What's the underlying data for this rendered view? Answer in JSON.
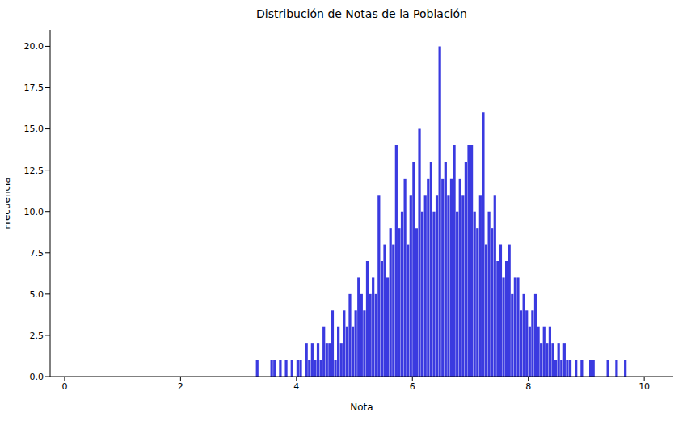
{
  "chart_data": {
    "type": "histogram",
    "title": "Distribución de Notas de la Población",
    "x_label": "Nota",
    "y_label": "Frecuencia",
    "color": "#3a3ae0",
    "grid": false,
    "xlim": [
      -0.25,
      10.5
    ],
    "xticks": [
      0,
      2,
      4,
      6,
      8,
      10
    ],
    "ylim": [
      0,
      21
    ],
    "yticks": [
      {
        "value": 0,
        "label": "0.0"
      },
      {
        "value": 2.5,
        "label": "2.5"
      },
      {
        "value": 5,
        "label": "5.0"
      },
      {
        "value": 7.5,
        "label": "7.5"
      },
      {
        "value": 10,
        "label": "10.0"
      },
      {
        "value": 12.5,
        "label": "12.5"
      },
      {
        "value": 15,
        "label": "15.0"
      },
      {
        "value": 17.5,
        "label": "17.5"
      },
      {
        "value": 20,
        "label": "20.0"
      }
    ],
    "bins": [
      3.3,
      3.35,
      3.4,
      3.45,
      3.5,
      3.55,
      3.6,
      3.65,
      3.7,
      3.75,
      3.8,
      3.85,
      3.9,
      3.95,
      4,
      4.05,
      4.1,
      4.15,
      4.2,
      4.25,
      4.3,
      4.35,
      4.4,
      4.45,
      4.5,
      4.55,
      4.6,
      4.65,
      4.7,
      4.75,
      4.8,
      4.85,
      4.9,
      4.95,
      5,
      5.05,
      5.1,
      5.15,
      5.2,
      5.25,
      5.3,
      5.35,
      5.4,
      5.45,
      5.5,
      5.55,
      5.6,
      5.65,
      5.7,
      5.75,
      5.8,
      5.85,
      5.9,
      5.95,
      6,
      6.05,
      6.1,
      6.15,
      6.2,
      6.25,
      6.3,
      6.35,
      6.4,
      6.45,
      6.5,
      6.55,
      6.6,
      6.65,
      6.7,
      6.75,
      6.8,
      6.85,
      6.9,
      6.95,
      7,
      7.05,
      7.1,
      7.15,
      7.2,
      7.25,
      7.3,
      7.35,
      7.4,
      7.45,
      7.5,
      7.55,
      7.6,
      7.65,
      7.7,
      7.75,
      7.8,
      7.85,
      7.9,
      7.95,
      8,
      8.05,
      8.1,
      8.15,
      8.2,
      8.25,
      8.3,
      8.35,
      8.4,
      8.45,
      8.5,
      8.55,
      8.6,
      8.65,
      8.7,
      8.75,
      8.8,
      8.85,
      8.9,
      8.95,
      9,
      9.05,
      9.1,
      9.15,
      9.2,
      9.25,
      9.3,
      9.35,
      9.4,
      9.45,
      9.5,
      9.55,
      9.6,
      9.65,
      9.7
    ],
    "values": [
      1,
      0,
      0,
      0,
      0,
      1,
      1,
      0,
      1,
      0,
      1,
      0,
      1,
      0,
      1,
      1,
      0,
      2,
      1,
      2,
      1,
      2,
      1,
      3,
      2,
      2,
      4,
      1,
      3,
      2,
      4,
      3,
      5,
      3,
      4,
      6,
      5,
      4,
      7,
      5,
      6,
      5,
      11,
      7,
      8,
      6,
      9,
      8,
      14,
      9,
      10,
      12,
      8,
      11,
      13,
      9,
      15,
      10,
      11,
      12,
      13,
      10,
      11,
      20,
      12,
      13,
      11,
      12,
      14,
      10,
      12,
      11,
      13,
      14,
      14,
      10,
      9,
      11,
      16,
      8,
      10,
      9,
      11,
      7,
      8,
      6,
      7,
      8,
      5,
      6,
      6,
      4,
      5,
      4,
      3,
      4,
      5,
      3,
      2,
      3,
      2,
      3,
      2,
      1,
      2,
      1,
      2,
      1,
      1,
      0,
      1,
      0,
      1,
      0,
      0,
      1,
      1,
      0,
      0,
      0,
      0,
      1,
      0,
      0,
      1,
      0,
      0,
      1
    ]
  }
}
